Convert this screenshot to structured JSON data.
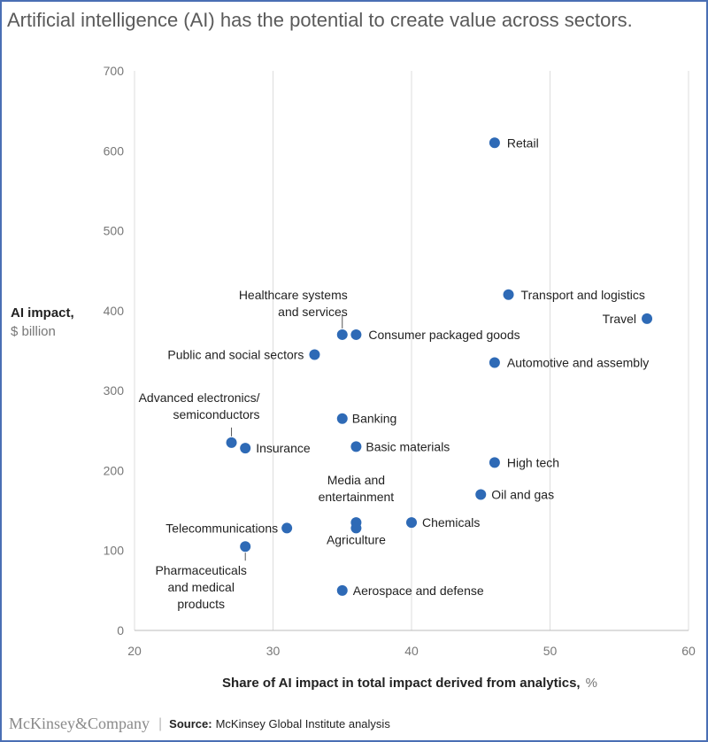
{
  "title": "Artificial intelligence (AI) has the potential to create value across sectors.",
  "footer": {
    "logo": "McKinsey&Company",
    "source_label": "Source:",
    "source_text": "McKinsey Global Institute analysis"
  },
  "colors": {
    "point": "#2e6ab6",
    "grid": "#dddddd",
    "frame": "#4a6fb4"
  },
  "chart_data": {
    "type": "scatter",
    "title": "Artificial intelligence (AI) has the potential to create value across sectors.",
    "ylabel": "AI impact,",
    "ylabel_unit": "$ billion",
    "xlabel": "Share of AI impact in total impact derived from analytics,",
    "xlabel_unit": "%",
    "xlim": [
      20,
      60
    ],
    "ylim": [
      0,
      700
    ],
    "xticks": [
      20,
      30,
      40,
      50,
      60
    ],
    "yticks": [
      0,
      100,
      200,
      300,
      400,
      500,
      600,
      700
    ],
    "grid": "vertical",
    "points": [
      {
        "label": [
          "Retail"
        ],
        "x": 46,
        "y": 610
      },
      {
        "label": [
          "Transport and logistics"
        ],
        "x": 47,
        "y": 420
      },
      {
        "label": [
          "Travel"
        ],
        "x": 57,
        "y": 390
      },
      {
        "label": [
          "Healthcare systems",
          "and services"
        ],
        "x": 35,
        "y": 370
      },
      {
        "label": [
          "Consumer packaged goods"
        ],
        "x": 36,
        "y": 370
      },
      {
        "label": [
          "Public and social sectors"
        ],
        "x": 33,
        "y": 345
      },
      {
        "label": [
          "Automotive and assembly"
        ],
        "x": 46,
        "y": 335
      },
      {
        "label": [
          "Banking"
        ],
        "x": 35,
        "y": 265
      },
      {
        "label": [
          "Advanced electronics/",
          "semiconductors"
        ],
        "x": 27,
        "y": 235
      },
      {
        "label": [
          "Insurance"
        ],
        "x": 28,
        "y": 228
      },
      {
        "label": [
          "Basic materials"
        ],
        "x": 36,
        "y": 230
      },
      {
        "label": [
          "High tech"
        ],
        "x": 46,
        "y": 210
      },
      {
        "label": [
          "Oil and gas"
        ],
        "x": 45,
        "y": 170
      },
      {
        "label": [
          "Media and",
          "entertainment"
        ],
        "x": 36,
        "y": 135
      },
      {
        "label": [
          "Agriculture"
        ],
        "x": 36,
        "y": 128
      },
      {
        "label": [
          "Chemicals"
        ],
        "x": 40,
        "y": 135
      },
      {
        "label": [
          "Telecommunications"
        ],
        "x": 31,
        "y": 128
      },
      {
        "label": [
          "Pharmaceuticals",
          "and medical",
          "products"
        ],
        "x": 28,
        "y": 105
      },
      {
        "label": [
          "Aerospace and defense"
        ],
        "x": 35,
        "y": 50
      }
    ]
  }
}
